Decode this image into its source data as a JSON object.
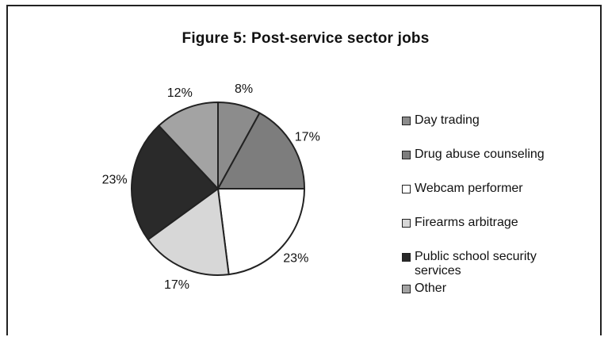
{
  "colors": {
    "background": "#ffffff",
    "outline": "#222222"
  },
  "chart_data": {
    "type": "pie",
    "title": "Figure 5: Post-service sector jobs",
    "legend_position": "right",
    "slices": [
      {
        "label": "Day trading",
        "value": 8,
        "value_label": "8%",
        "color": "#8c8c8c"
      },
      {
        "label": "Drug abuse counseling",
        "value": 17,
        "value_label": "17%",
        "color": "#7d7d7d"
      },
      {
        "label": "Webcam performer",
        "value": 23,
        "value_label": "23%",
        "color": "#ffffff"
      },
      {
        "label": "Firearms arbitrage",
        "value": 17,
        "value_label": "17%",
        "color": "#d7d7d7"
      },
      {
        "label": "Public school security\nservices",
        "value": 23,
        "value_label": "23%",
        "color": "#2a2a2a"
      },
      {
        "label": "Other",
        "value": 12,
        "value_label": "12%",
        "color": "#a3a3a3"
      }
    ]
  }
}
